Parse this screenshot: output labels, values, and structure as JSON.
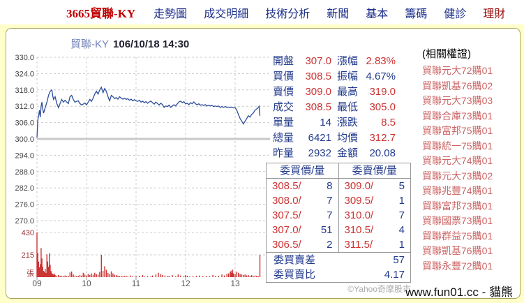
{
  "nav": {
    "stock_code": "3665貿聯-KY",
    "items": [
      {
        "label": "走勢圖"
      },
      {
        "label": "成交明細"
      },
      {
        "label": "技術分析"
      },
      {
        "label": "新聞"
      },
      {
        "label": "基本"
      },
      {
        "label": "籌碼"
      },
      {
        "label": "健診"
      },
      {
        "label": "理財",
        "emphasis": true
      }
    ]
  },
  "chart": {
    "title_symbol": "貿聯-KY",
    "title_datetime": "106/10/18 14:30"
  },
  "quote": {
    "rows": [
      {
        "l1": "開盤",
        "v1": "307.0",
        "c1": "up",
        "l2": "漲幅",
        "v2": "2.83%",
        "c2": "up"
      },
      {
        "l1": "買價",
        "v1": "308.5",
        "c1": "up",
        "l2": "振幅",
        "v2": "4.67%",
        "c2": "flat"
      },
      {
        "l1": "賣價",
        "v1": "309.0",
        "c1": "up",
        "l2": "最高",
        "v2": "319.0",
        "c2": "up"
      },
      {
        "l1": "成交",
        "v1": "308.5",
        "c1": "up",
        "l2": "最低",
        "v2": "305.0",
        "c2": "up"
      },
      {
        "l1": "單量",
        "v1": "14",
        "c1": "flat",
        "l2": "漲跌",
        "v2": "8.5",
        "c2": "up"
      },
      {
        "l1": "總量",
        "v1": "6421",
        "c1": "flat",
        "l2": "均價",
        "v2": "312.7",
        "c2": "up"
      },
      {
        "l1": "昨量",
        "v1": "2932",
        "c1": "flat",
        "l2": "金額",
        "v2": "20.08",
        "c2": "flat"
      }
    ]
  },
  "order_book": {
    "headers": [
      "委買價/量",
      "委賣價/量"
    ],
    "rows": [
      {
        "bid_price": "308.5",
        "bid_qty": "8",
        "ask_price": "309.0",
        "ask_qty": "5"
      },
      {
        "bid_price": "308.0",
        "bid_qty": "7",
        "ask_price": "309.5",
        "ask_qty": "1"
      },
      {
        "bid_price": "307.5",
        "bid_qty": "7",
        "ask_price": "310.0",
        "ask_qty": "7"
      },
      {
        "bid_price": "307.0",
        "bid_qty": "51",
        "ask_price": "310.5",
        "ask_qty": "4"
      },
      {
        "bid_price": "306.5",
        "bid_qty": "2",
        "ask_price": "311.5",
        "ask_qty": "1"
      }
    ],
    "diff_label": "委買賣差",
    "diff_value": "57",
    "ratio_label": "委買賣比",
    "ratio_value": "4.17"
  },
  "warrants": {
    "title": "(相關權證)",
    "items": [
      "貿聯元大72購01",
      "貿聯凱基76購02",
      "貿聯元大73購03",
      "貿聯合庫73購01",
      "貿聯富邦75購01",
      "貿聯統一75購01",
      "貿聯元大74購01",
      "貿聯元大73購02",
      "貿聯兆豐74購01",
      "貿聯富邦73購01",
      "貿聯國票73購01",
      "貿聯群益75購01",
      "貿聯凱基76購01",
      "貿聯永豐72購01"
    ]
  },
  "watermark": "©Yahoo奇摩股市",
  "footer": "www.fun01.cc - 貓熊",
  "colors": {
    "up_red": "#CC3333",
    "neutral_navy": "#223A8C",
    "warrant_link": "#CC6666",
    "price_line": "#2D4D9B",
    "volume_bar": "#CC3333",
    "prev_close_line": "#C8C8C8",
    "grid": "#CCCCCC",
    "axis_text": "#555555",
    "volume_axis_text": "#993333"
  },
  "chart_data": [
    {
      "type": "line",
      "name": "price",
      "title": "貿聯-KY 106/10/18 14:30",
      "x_unit": "minutes since 09:00",
      "x_range": [
        0,
        270
      ],
      "x_tick_minutes": [
        0,
        60,
        120,
        180,
        240
      ],
      "x_tick_labels": [
        "09",
        "10",
        "11",
        "12",
        "13"
      ],
      "ylim": [
        270,
        330
      ],
      "y_ticks": [
        330,
        324,
        318,
        312,
        306,
        300,
        294,
        288,
        282,
        276,
        270
      ],
      "y_tick_labels": [
        "330.0",
        "324.0",
        "318.0",
        "312.0",
        "306.0",
        "300.0",
        "294.0",
        "288.0",
        "282.0",
        "276.0",
        "270.0"
      ],
      "prev_close": 300.0,
      "grid": "dashed",
      "points": [
        [
          0,
          300.5
        ],
        [
          1,
          307
        ],
        [
          2,
          308.5
        ],
        [
          3,
          310.5
        ],
        [
          4,
          308
        ],
        [
          5,
          312
        ],
        [
          6,
          313.5
        ],
        [
          7,
          311
        ],
        [
          8,
          309.5
        ],
        [
          10,
          311.5
        ],
        [
          12,
          313.5
        ],
        [
          14,
          316
        ],
        [
          16,
          317.5
        ],
        [
          18,
          318
        ],
        [
          19,
          316
        ],
        [
          20,
          314.5
        ],
        [
          22,
          315.5
        ],
        [
          24,
          313
        ],
        [
          26,
          311.5
        ],
        [
          28,
          313
        ],
        [
          30,
          314.5
        ],
        [
          32,
          313.5
        ],
        [
          34,
          314.2
        ],
        [
          36,
          313.5
        ],
        [
          38,
          313
        ],
        [
          40,
          315.5
        ],
        [
          42,
          316
        ],
        [
          44,
          314.5
        ],
        [
          46,
          313.5
        ],
        [
          48,
          313.8
        ],
        [
          50,
          314
        ],
        [
          52,
          313
        ],
        [
          54,
          312.5
        ],
        [
          56,
          312.8
        ],
        [
          58,
          313.2
        ],
        [
          60,
          312.5
        ],
        [
          62,
          313.5
        ],
        [
          64,
          314.5
        ],
        [
          66,
          313.8
        ],
        [
          68,
          315
        ],
        [
          70,
          316.5
        ],
        [
          72,
          317.5
        ],
        [
          74,
          316.5
        ],
        [
          76,
          318
        ],
        [
          78,
          319
        ],
        [
          80,
          317
        ],
        [
          82,
          318.5
        ],
        [
          84,
          317.5
        ],
        [
          86,
          315.5
        ],
        [
          88,
          314
        ],
        [
          90,
          316
        ],
        [
          92,
          315.5
        ],
        [
          94,
          314.8
        ],
        [
          96,
          315.2
        ],
        [
          98,
          314.6
        ],
        [
          100,
          315.5
        ],
        [
          102,
          315
        ],
        [
          104,
          314.6
        ],
        [
          106,
          315
        ],
        [
          108,
          314.5
        ],
        [
          110,
          314.8
        ],
        [
          112,
          314.2
        ],
        [
          114,
          314.6
        ],
        [
          116,
          314
        ],
        [
          118,
          314.4
        ],
        [
          120,
          314
        ],
        [
          122,
          313.8
        ],
        [
          124,
          314.2
        ],
        [
          126,
          313.5
        ],
        [
          128,
          313.9
        ],
        [
          130,
          313.3
        ],
        [
          132,
          313.7
        ],
        [
          134,
          313.1
        ],
        [
          136,
          313.6
        ],
        [
          138,
          313.9
        ],
        [
          140,
          313.3
        ],
        [
          142,
          312.8
        ],
        [
          144,
          313.5
        ],
        [
          146,
          313
        ],
        [
          148,
          312.5
        ],
        [
          150,
          313.1
        ],
        [
          152,
          312.6
        ],
        [
          154,
          311.6
        ],
        [
          156,
          312.1
        ],
        [
          158,
          311.9
        ],
        [
          160,
          312.4
        ],
        [
          162,
          311.6
        ],
        [
          164,
          312.1
        ],
        [
          166,
          312.6
        ],
        [
          168,
          312.1
        ],
        [
          170,
          312.9
        ],
        [
          172,
          313.6
        ],
        [
          174,
          313.9
        ],
        [
          176,
          313.3
        ],
        [
          178,
          313.7
        ],
        [
          180,
          312.9
        ],
        [
          182,
          313.1
        ],
        [
          184,
          312.6
        ],
        [
          186,
          313.3
        ],
        [
          188,
          312.9
        ],
        [
          190,
          313.6
        ],
        [
          192,
          312.9
        ],
        [
          194,
          312.6
        ],
        [
          196,
          312.9
        ],
        [
          198,
          312.4
        ],
        [
          200,
          312.6
        ],
        [
          202,
          312.3
        ],
        [
          204,
          312.6
        ],
        [
          206,
          312.1
        ],
        [
          208,
          312.4
        ],
        [
          210,
          312.1
        ],
        [
          212,
          312.3
        ],
        [
          214,
          311.9
        ],
        [
          216,
          312.1
        ],
        [
          218,
          311.9
        ],
        [
          220,
          312.1
        ],
        [
          222,
          311.6
        ],
        [
          224,
          311.9
        ],
        [
          226,
          311.6
        ],
        [
          228,
          311.9
        ],
        [
          230,
          311.6
        ],
        [
          232,
          311.7
        ],
        [
          234,
          311.5
        ],
        [
          236,
          311.7
        ],
        [
          238,
          311.4
        ],
        [
          240,
          311.5
        ],
        [
          242,
          310.5
        ],
        [
          244,
          309
        ],
        [
          246,
          307.5
        ],
        [
          248,
          306.5
        ],
        [
          250,
          305.5
        ],
        [
          252,
          306.5
        ],
        [
          254,
          307.5
        ],
        [
          256,
          308.5
        ],
        [
          258,
          308
        ],
        [
          260,
          309
        ],
        [
          262,
          309.5
        ],
        [
          264,
          310.5
        ],
        [
          266,
          311
        ],
        [
          268,
          311.5
        ],
        [
          269,
          312
        ],
        [
          270,
          308.5
        ]
      ]
    },
    {
      "type": "bar",
      "name": "volume",
      "unit": "張",
      "y_ticks": [
        430,
        215
      ],
      "y_tick_labels": [
        "430",
        "215"
      ],
      "points": [
        [
          0,
          430
        ],
        [
          1,
          230
        ],
        [
          2,
          150
        ],
        [
          3,
          95
        ],
        [
          4,
          125
        ],
        [
          5,
          280
        ],
        [
          6,
          180
        ],
        [
          7,
          100
        ],
        [
          8,
          60
        ],
        [
          9,
          50
        ],
        [
          10,
          80
        ],
        [
          11,
          40
        ],
        [
          12,
          220
        ],
        [
          13,
          150
        ],
        [
          14,
          100
        ],
        [
          15,
          230
        ],
        [
          16,
          120
        ],
        [
          17,
          60
        ],
        [
          18,
          40
        ],
        [
          19,
          30
        ],
        [
          20,
          25
        ],
        [
          21,
          35
        ],
        [
          22,
          20
        ],
        [
          24,
          15
        ],
        [
          26,
          22
        ],
        [
          28,
          14
        ],
        [
          30,
          12
        ],
        [
          32,
          10
        ],
        [
          34,
          16
        ],
        [
          36,
          10
        ],
        [
          38,
          13
        ],
        [
          40,
          45
        ],
        [
          42,
          55
        ],
        [
          44,
          25
        ],
        [
          46,
          15
        ],
        [
          48,
          10
        ],
        [
          50,
          13
        ],
        [
          52,
          22
        ],
        [
          54,
          15
        ],
        [
          56,
          42
        ],
        [
          58,
          26
        ],
        [
          60,
          15
        ],
        [
          62,
          32
        ],
        [
          64,
          20
        ],
        [
          66,
          36
        ],
        [
          68,
          24
        ],
        [
          70,
          42
        ],
        [
          72,
          30
        ],
        [
          74,
          25
        ],
        [
          76,
          52
        ],
        [
          78,
          215
        ],
        [
          80,
          60
        ],
        [
          82,
          105
        ],
        [
          84,
          70
        ],
        [
          86,
          42
        ],
        [
          88,
          30
        ],
        [
          90,
          56
        ],
        [
          92,
          36
        ],
        [
          94,
          24
        ],
        [
          96,
          20
        ],
        [
          98,
          14
        ],
        [
          100,
          10
        ],
        [
          102,
          13
        ],
        [
          104,
          8
        ],
        [
          106,
          11
        ],
        [
          108,
          13
        ],
        [
          110,
          8
        ],
        [
          113,
          16
        ],
        [
          116,
          9
        ],
        [
          120,
          11
        ],
        [
          124,
          13
        ],
        [
          128,
          21
        ],
        [
          130,
          8
        ],
        [
          134,
          11
        ],
        [
          138,
          9
        ],
        [
          140,
          16
        ],
        [
          144,
          26
        ],
        [
          147,
          42
        ],
        [
          150,
          31
        ],
        [
          152,
          21
        ],
        [
          155,
          16
        ],
        [
          158,
          11
        ],
        [
          160,
          13
        ],
        [
          164,
          19
        ],
        [
          168,
          9
        ],
        [
          171,
          26
        ],
        [
          174,
          16
        ],
        [
          178,
          11
        ],
        [
          180,
          21
        ],
        [
          182,
          13
        ],
        [
          185,
          8
        ],
        [
          189,
          11
        ],
        [
          193,
          13
        ],
        [
          197,
          16
        ],
        [
          201,
          11
        ],
        [
          205,
          13
        ],
        [
          209,
          9
        ],
        [
          213,
          21
        ],
        [
          216,
          11
        ],
        [
          220,
          13
        ],
        [
          224,
          26
        ],
        [
          227,
          16
        ],
        [
          230,
          31
        ],
        [
          232,
          36
        ],
        [
          234,
          48
        ],
        [
          235,
          62
        ],
        [
          236,
          42
        ],
        [
          237,
          72
        ],
        [
          238,
          36
        ],
        [
          240,
          31
        ],
        [
          242,
          52
        ],
        [
          244,
          42
        ],
        [
          246,
          31
        ],
        [
          248,
          26
        ],
        [
          250,
          21
        ],
        [
          252,
          26
        ],
        [
          254,
          16
        ],
        [
          256,
          21
        ],
        [
          258,
          13
        ],
        [
          260,
          19
        ],
        [
          262,
          11
        ],
        [
          264,
          16
        ],
        [
          266,
          13
        ],
        [
          268,
          10
        ],
        [
          270,
          215
        ]
      ]
    }
  ]
}
